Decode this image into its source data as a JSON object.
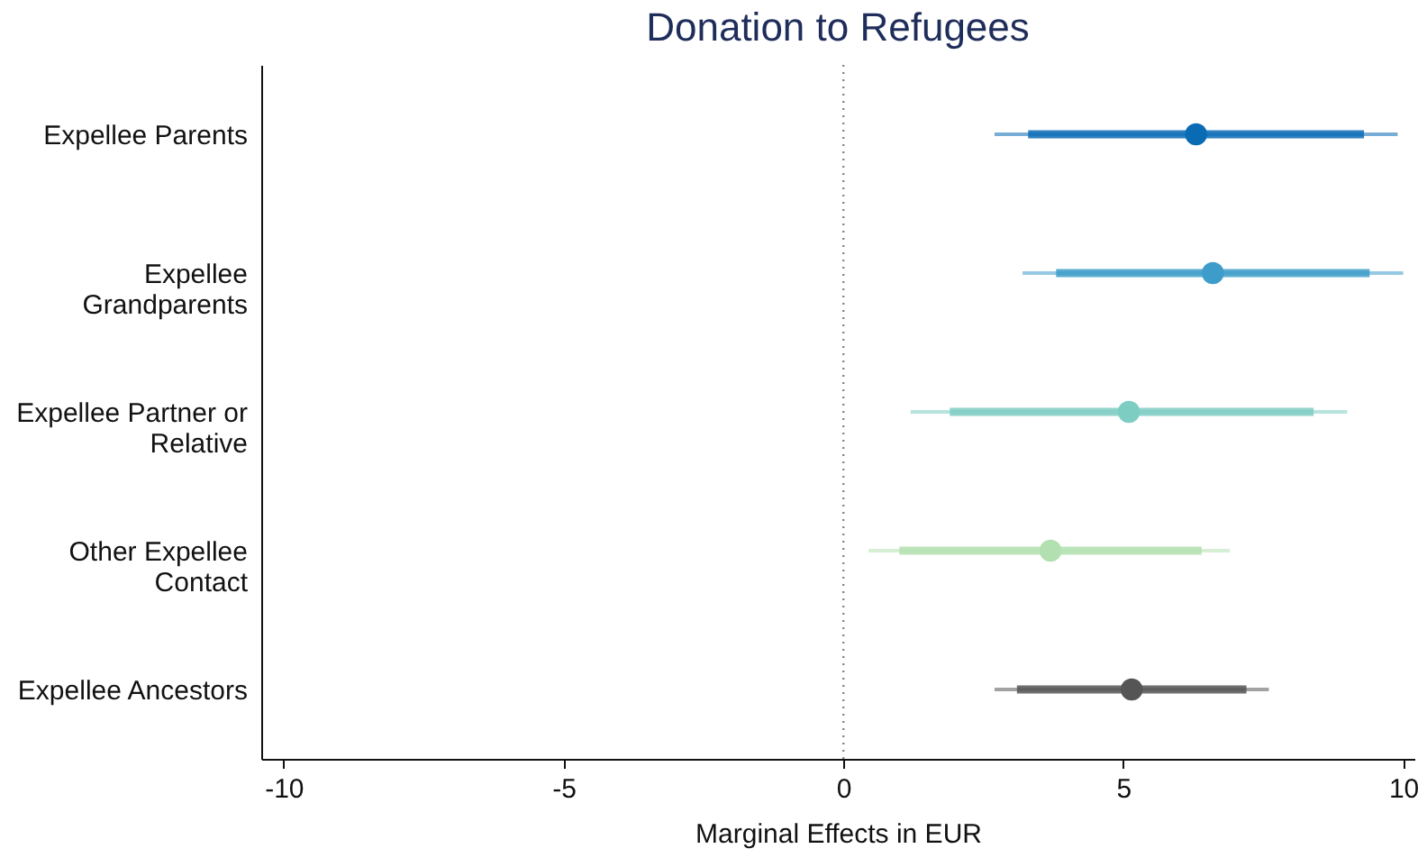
{
  "chart_data": {
    "type": "scatter",
    "orientation": "horizontal",
    "title": "Donation to Refugees",
    "xlabel": "Marginal Effects in EUR",
    "categories": [
      "Expellee Parents",
      "Expellee Grandparents",
      "Expellee Partner or Relative",
      "Other Expellee Contact",
      "Expellee Ancestors"
    ],
    "xlim": [
      -10.4,
      10.2
    ],
    "xticks": [
      -10,
      -5,
      0,
      5,
      10
    ],
    "grid": false,
    "marker": "circle",
    "series": [
      {
        "values": [
          6.3,
          6.6,
          5.1,
          3.7,
          5.15
        ],
        "colors": [
          "#0a6bb5",
          "#3d9cc9",
          "#7dcdc3",
          "#b3e0b0",
          "#555555"
        ],
        "errors": [
          [
            2.7,
            9.9
          ],
          [
            3.2,
            10.0
          ],
          [
            1.2,
            9.0
          ],
          [
            0.45,
            6.9
          ],
          [
            2.7,
            7.6
          ]
        ]
      },
      {
        "type": "bar",
        "base": [
          3.3,
          3.8,
          1.9,
          1.0,
          3.1
        ],
        "values": [
          6.0,
          5.6,
          6.5,
          5.4,
          4.1
        ],
        "colors": [
          "#0a6bb5",
          "#3d9cc9",
          "#7dcdc3",
          "#b3e0b0",
          "#555555"
        ]
      }
    ],
    "ref_lines": [
      {
        "axis": "x",
        "value": 0,
        "line_style": "dotted",
        "color": "#888888"
      }
    ]
  }
}
